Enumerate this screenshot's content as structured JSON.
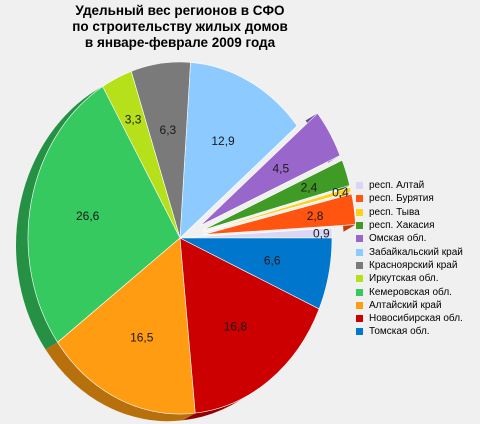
{
  "chart_data": {
    "type": "pie",
    "title_lines": [
      "Удельный вес регионов в СФО",
      "по строительству жилых домов",
      "в январе-феврале 2009 года"
    ],
    "slices": [
      {
        "name": "респ. Алтай",
        "value": 0.9,
        "label": "0,9",
        "color": "#d9d7f5",
        "exploded": false
      },
      {
        "name": "респ. Бурятия",
        "value": 2.8,
        "label": "2,8",
        "color": "#ff5511",
        "exploded": true
      },
      {
        "name": "респ. Тыва",
        "value": 0.4,
        "label": "0,4",
        "color": "#ffd21a",
        "exploded": true
      },
      {
        "name": "респ. Хакасия",
        "value": 2.4,
        "label": "2,4",
        "color": "#3f9a26",
        "exploded": true
      },
      {
        "name": "Омская обл.",
        "value": 4.5,
        "label": "4,5",
        "color": "#9966cc",
        "exploded": true
      },
      {
        "name": "Забайкальский край",
        "value": 12.9,
        "label": "12,9",
        "color": "#8ccaff",
        "exploded": false
      },
      {
        "name": "Красноярский край",
        "value": 6.3,
        "label": "6,3",
        "color": "#7a7a7a",
        "exploded": false
      },
      {
        "name": "Иркутская обл.",
        "value": 3.3,
        "label": "3,3",
        "color": "#b5e01a",
        "exploded": false
      },
      {
        "name": "Кемеровская обл.",
        "value": 26.6,
        "label": "26,6",
        "color": "#35c95f",
        "exploded": false
      },
      {
        "name": "Алтайский край",
        "value": 16.5,
        "label": "16,5",
        "color": "#ff9c12",
        "exploded": false
      },
      {
        "name": "Новосибирская обл.",
        "value": 16.8,
        "label": "16,8",
        "color": "#cc0000",
        "exploded": false
      },
      {
        "name": "Томская обл.",
        "value": 6.6,
        "label": "6,6",
        "color": "#0077cc",
        "exploded": false
      }
    ],
    "legend_position": "right"
  }
}
